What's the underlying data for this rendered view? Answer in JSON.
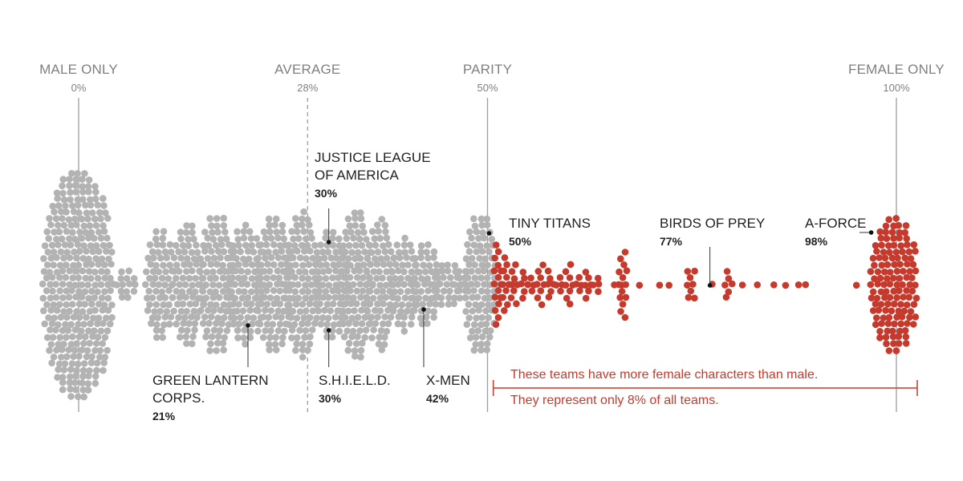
{
  "chart_data": {
    "type": "beeswarm",
    "title": "",
    "xlabel": "",
    "ylabel": "",
    "xlim": [
      0,
      100
    ],
    "colors": {
      "male_majority": "#b3b3b3",
      "female_majority": "#c53a2c",
      "axis_line": "#9e9e9e",
      "text": "#222222",
      "reference_text": "#808080"
    },
    "reference_lines": [
      {
        "title": "MALE ONLY",
        "value": 0,
        "label": "0%",
        "style": "solid"
      },
      {
        "title": "AVERAGE",
        "value": 28,
        "label": "28%",
        "style": "dashed"
      },
      {
        "title": "PARITY",
        "value": 50,
        "label": "50%",
        "style": "solid"
      },
      {
        "title": "FEMALE ONLY",
        "value": 100,
        "label": "100%",
        "style": "solid"
      }
    ],
    "highlighted_teams": [
      {
        "name": "JUSTICE LEAGUE OF AMERICA",
        "lines": [
          "JUSTICE LEAGUE",
          "OF AMERICA"
        ],
        "value": 30,
        "label": "30%",
        "label_side": "above"
      },
      {
        "name": "TINY TITANS",
        "lines": [
          "TINY TITANS"
        ],
        "value": 50,
        "label": "50%",
        "label_side": "right"
      },
      {
        "name": "BIRDS OF PREY",
        "lines": [
          "BIRDS OF PREY"
        ],
        "value": 77,
        "label": "77%",
        "label_side": "above"
      },
      {
        "name": "A-FORCE",
        "lines": [
          "A-FORCE"
        ],
        "value": 98,
        "label": "98%",
        "label_side": "left"
      },
      {
        "name": "GREEN LANTERN CORPS.",
        "lines": [
          "GREEN LANTERN",
          "CORPS."
        ],
        "value": 21,
        "label": "21%",
        "label_side": "below"
      },
      {
        "name": "S.H.I.E.L.D.",
        "lines": [
          "S.H.I.E.L.D."
        ],
        "value": 30,
        "label": "30%",
        "label_side": "below"
      },
      {
        "name": "X-MEN",
        "lines": [
          "X-MEN"
        ],
        "value": 42,
        "label": "42%",
        "label_side": "below"
      }
    ],
    "annotation": {
      "line1": "These teams have more female characters than male.",
      "line2": "They represent only 8% of all teams.",
      "range": [
        51,
        100
      ]
    },
    "distribution_profile": [
      {
        "value": 0,
        "relative_density": 1.0
      },
      {
        "value": 5,
        "relative_density": 0.17
      },
      {
        "value": 10,
        "relative_density": 0.33
      },
      {
        "value": 15,
        "relative_density": 0.42
      },
      {
        "value": 20,
        "relative_density": 0.45
      },
      {
        "value": 25,
        "relative_density": 0.55
      },
      {
        "value": 30,
        "relative_density": 0.6
      },
      {
        "value": 35,
        "relative_density": 0.5
      },
      {
        "value": 40,
        "relative_density": 0.3
      },
      {
        "value": 45,
        "relative_density": 0.12
      },
      {
        "value": 50,
        "relative_density": 0.6
      },
      {
        "value": 55,
        "relative_density": 0.15
      },
      {
        "value": 60,
        "relative_density": 0.08
      },
      {
        "value": 66,
        "relative_density": 0.2
      },
      {
        "value": 75,
        "relative_density": 0.15
      },
      {
        "value": 80,
        "relative_density": 0.05
      },
      {
        "value": 100,
        "relative_density": 0.75
      }
    ]
  }
}
